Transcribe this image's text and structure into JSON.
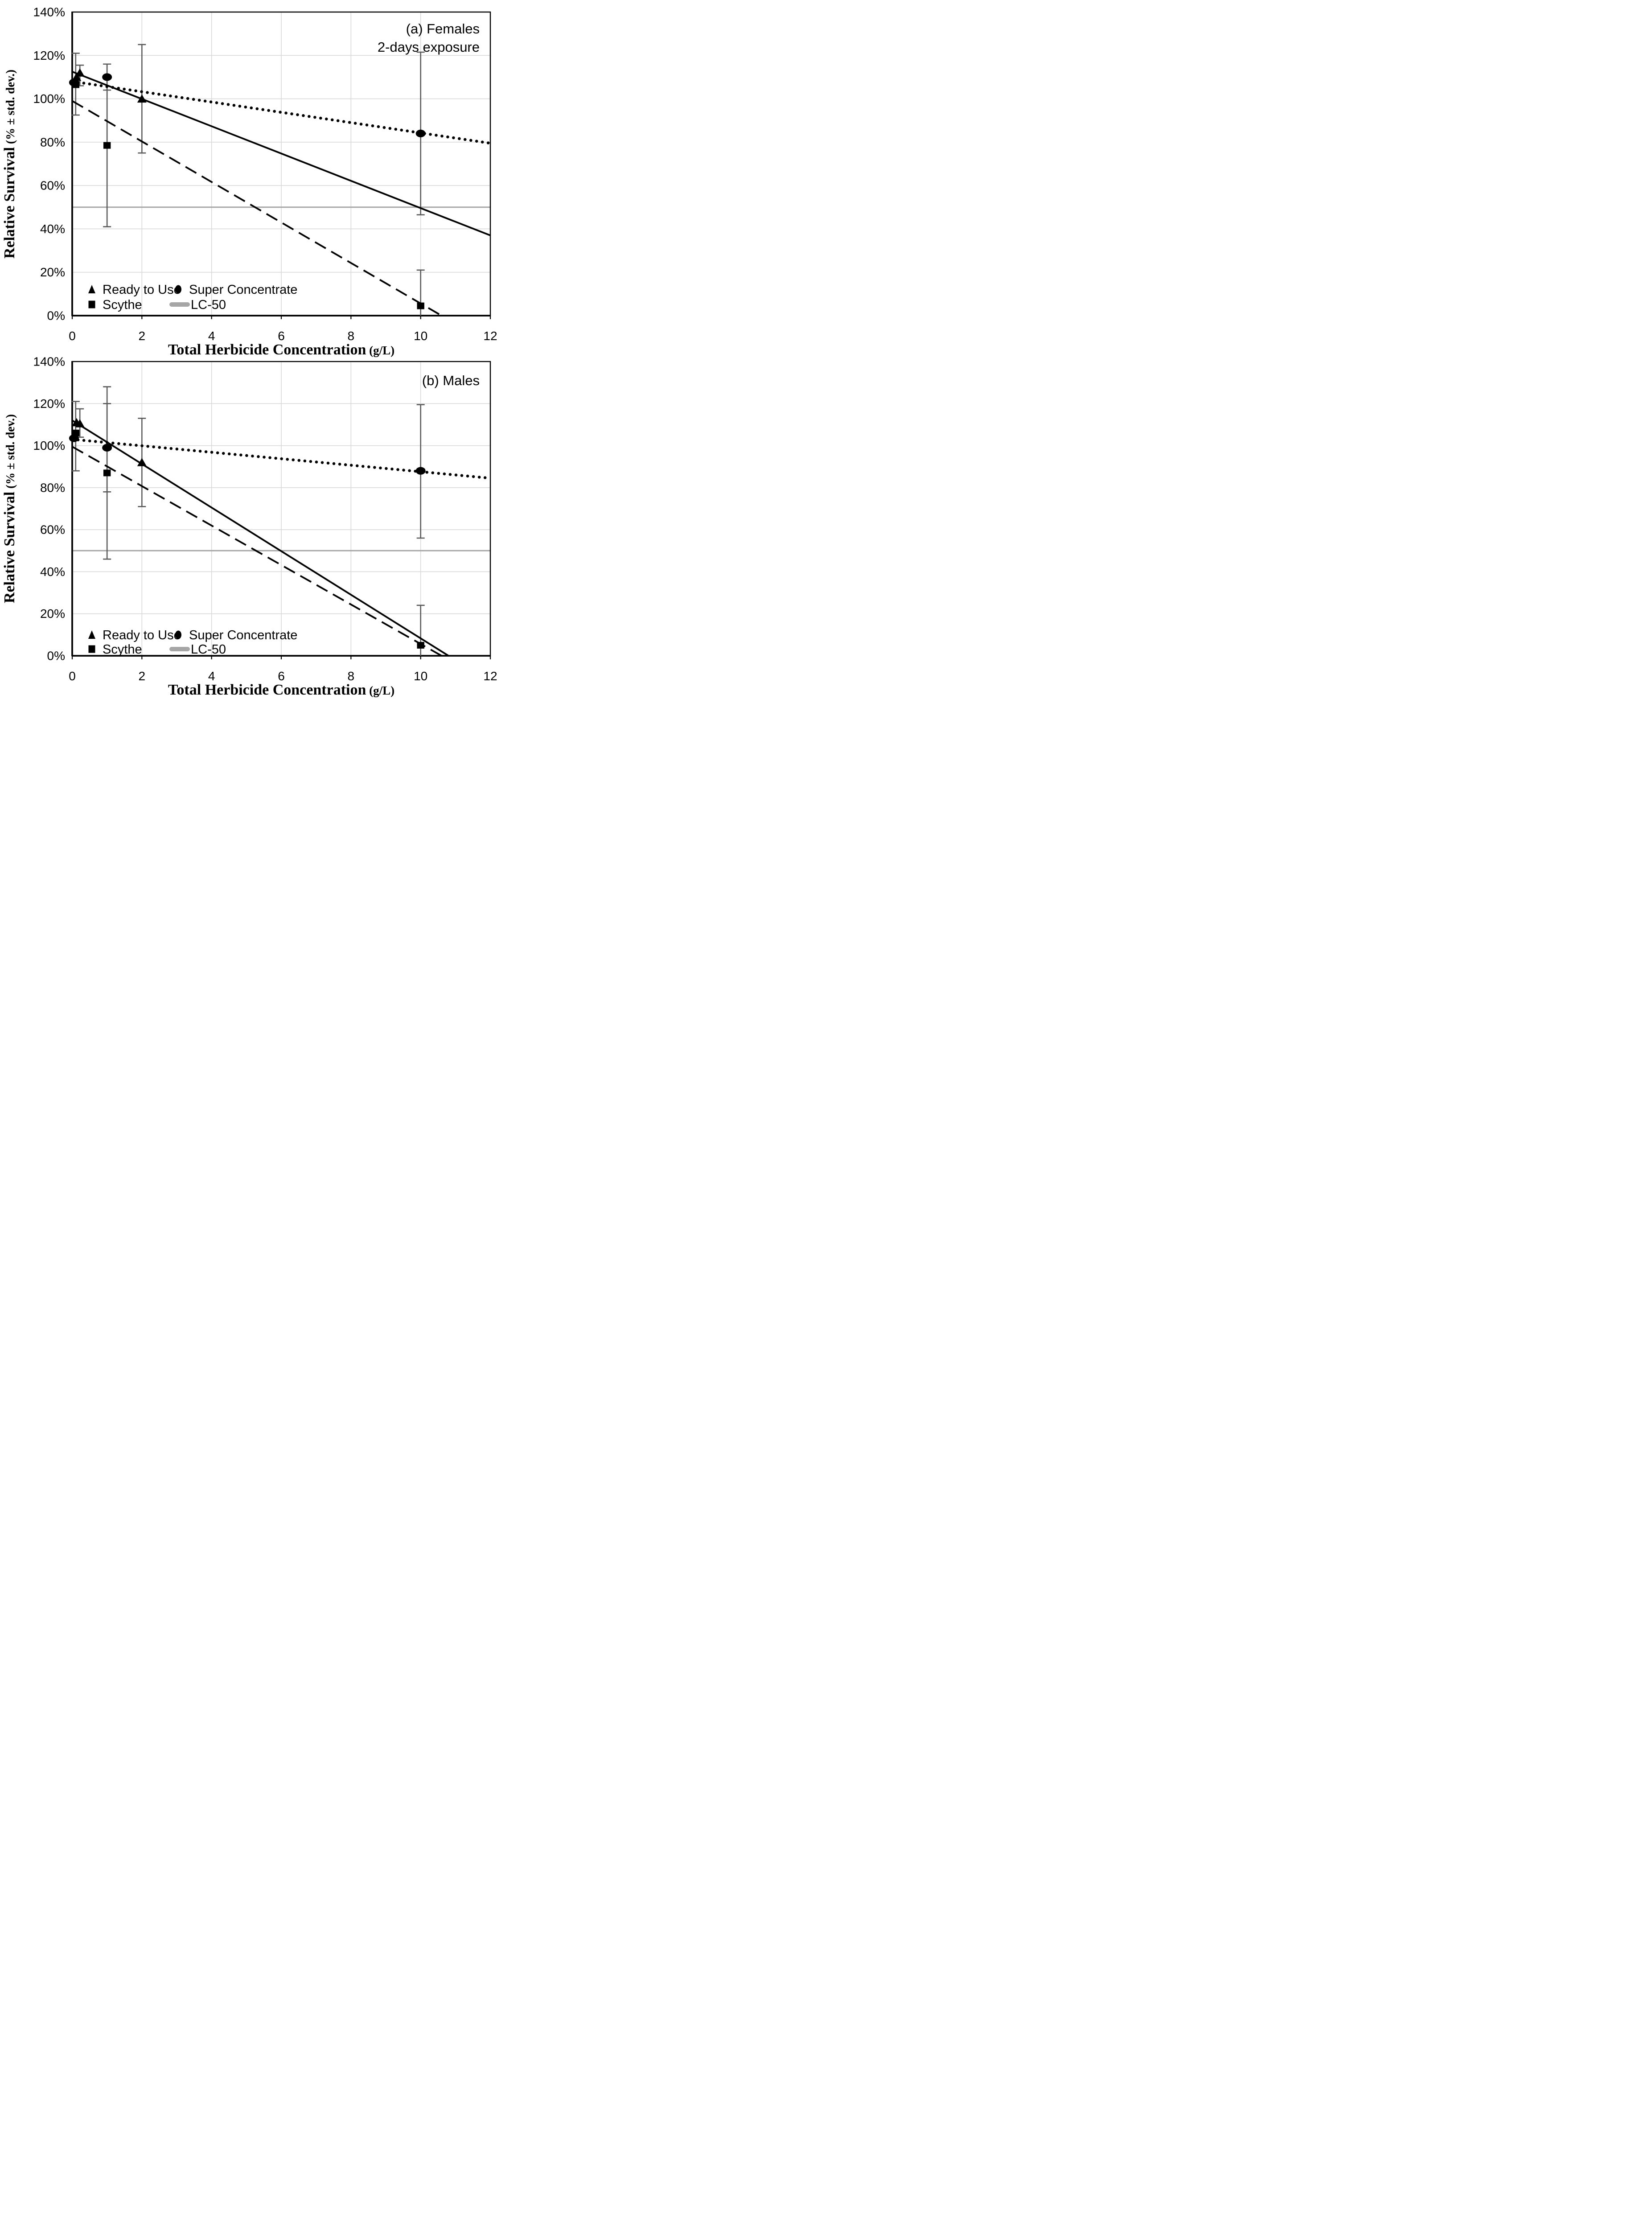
{
  "page": {
    "background": "#ffffff"
  },
  "colors": {
    "ink": "#000000",
    "grid": "#d9d9d9",
    "lc50_line": "#a6a6a6",
    "error_bar": "#595959"
  },
  "axis_titles": {
    "x_main": "Total Herbicide Concentration",
    "x_unit": " (g/L)",
    "y_main": "Relative Survival",
    "y_unit": " (% ± std. dev.)"
  },
  "legend": {
    "position": "inside-bottom-left",
    "entries": [
      {
        "label": "Ready to Use",
        "marker": "triangle"
      },
      {
        "label": "Super Concentrate",
        "marker": "circle"
      },
      {
        "label": "Scythe",
        "marker": "square"
      },
      {
        "label": "LC-50",
        "marker": "lc50-line"
      }
    ]
  },
  "chart_data": [
    {
      "type": "scatter",
      "panel": "a",
      "title_lines": [
        "(a) Females",
        "2-days exposure"
      ],
      "xlabel": "Total Herbicide Concentration (g/L)",
      "ylabel": "Relative Survival (% ± std. dev.)",
      "xlim": [
        0,
        12
      ],
      "ylim_percent": [
        0,
        140
      ],
      "x_tick_labels": [
        "0",
        "2",
        "4",
        "6",
        "8",
        "10",
        "12"
      ],
      "y_tick_labels": [
        "0%",
        "20%",
        "40%",
        "60%",
        "80%",
        "100%",
        "120%",
        "140%"
      ],
      "grid": true,
      "lc50_percent": 50,
      "series": [
        {
          "name": "Ready to Use",
          "marker": "triangle",
          "trend_style": "solid",
          "points": [
            {
              "x": 0.125,
              "y": 110
            },
            {
              "x": 0.22,
              "y": 112,
              "err_low": 106,
              "err_high": 115.5
            },
            {
              "x": 2,
              "y": 100,
              "err_low": 75,
              "err_high": 125
            }
          ],
          "trend": {
            "x1": 0,
            "y1": 112.5,
            "x2": 12,
            "y2": 37
          }
        },
        {
          "name": "Super Concentrate",
          "marker": "circle",
          "trend_style": "dotted",
          "points": [
            {
              "x": 0.05,
              "y": 107.5
            },
            {
              "x": 1,
              "y": 110,
              "err_low": 104,
              "err_high": 116
            },
            {
              "x": 10,
              "y": 84,
              "err_low": 46.5,
              "err_high": 121.5
            }
          ],
          "trend": {
            "x1": 0,
            "y1": 108,
            "x2": 12,
            "y2": 79.5
          }
        },
        {
          "name": "Scythe",
          "marker": "square",
          "trend_style": "dashed",
          "points": [
            {
              "x": 0.1,
              "y": 106.5,
              "err_low": 92.5,
              "err_high": 121
            },
            {
              "x": 1,
              "y": 78.5,
              "err_low": 41,
              "err_high": 116
            },
            {
              "x": 10,
              "y": 4.5,
              "err_low": 0,
              "err_high": 21,
              "err_low_capped": false
            }
          ],
          "trend": {
            "x1": 0,
            "y1": 99,
            "x2": 10.6,
            "y2": 0
          }
        },
        {
          "name": "LC-50",
          "marker": "lc50-line",
          "value_percent": 50
        }
      ]
    },
    {
      "type": "scatter",
      "panel": "b",
      "title_lines": [
        "(b) Males"
      ],
      "xlabel": "Total Herbicide Concentration (g/L)",
      "ylabel": "Relative Survival (% ± std. dev.)",
      "xlim": [
        0,
        12
      ],
      "ylim_percent": [
        0,
        140
      ],
      "x_tick_labels": [
        "0",
        "2",
        "4",
        "6",
        "8",
        "10",
        "12"
      ],
      "y_tick_labels": [
        "0%",
        "20%",
        "40%",
        "60%",
        "80%",
        "100%",
        "120%",
        "140%"
      ],
      "grid": true,
      "lc50_percent": 50,
      "series": [
        {
          "name": "Ready to Use",
          "marker": "triangle",
          "trend_style": "solid",
          "points": [
            {
              "x": 0.125,
              "y": 111
            },
            {
              "x": 0.22,
              "y": 110.5,
              "err_low": 104,
              "err_high": 117.5
            },
            {
              "x": 2,
              "y": 92,
              "err_low": 71,
              "err_high": 113
            }
          ],
          "trend": {
            "x1": 0,
            "y1": 112,
            "x2": 10.8,
            "y2": 0
          }
        },
        {
          "name": "Super Concentrate",
          "marker": "circle",
          "trend_style": "dotted",
          "points": [
            {
              "x": 0.05,
              "y": 103.5
            },
            {
              "x": 1,
              "y": 99,
              "err_low": 78,
              "err_high": 120
            },
            {
              "x": 10,
              "y": 88,
              "err_low": 56,
              "err_high": 119.5
            }
          ],
          "trend": {
            "x1": 0,
            "y1": 103,
            "x2": 12,
            "y2": 84.5
          }
        },
        {
          "name": "Scythe",
          "marker": "square",
          "trend_style": "dashed",
          "points": [
            {
              "x": 0.1,
              "y": 106,
              "err_low": 88,
              "err_high": 121
            },
            {
              "x": 1,
              "y": 87,
              "err_low": 46,
              "err_high": 128
            },
            {
              "x": 10,
              "y": 5,
              "err_low": 0,
              "err_high": 24,
              "err_low_capped": false
            }
          ],
          "trend": {
            "x1": 0,
            "y1": 99.5,
            "x2": 10.6,
            "y2": 0
          }
        },
        {
          "name": "LC-50",
          "marker": "lc50-line",
          "value_percent": 50
        }
      ]
    }
  ]
}
